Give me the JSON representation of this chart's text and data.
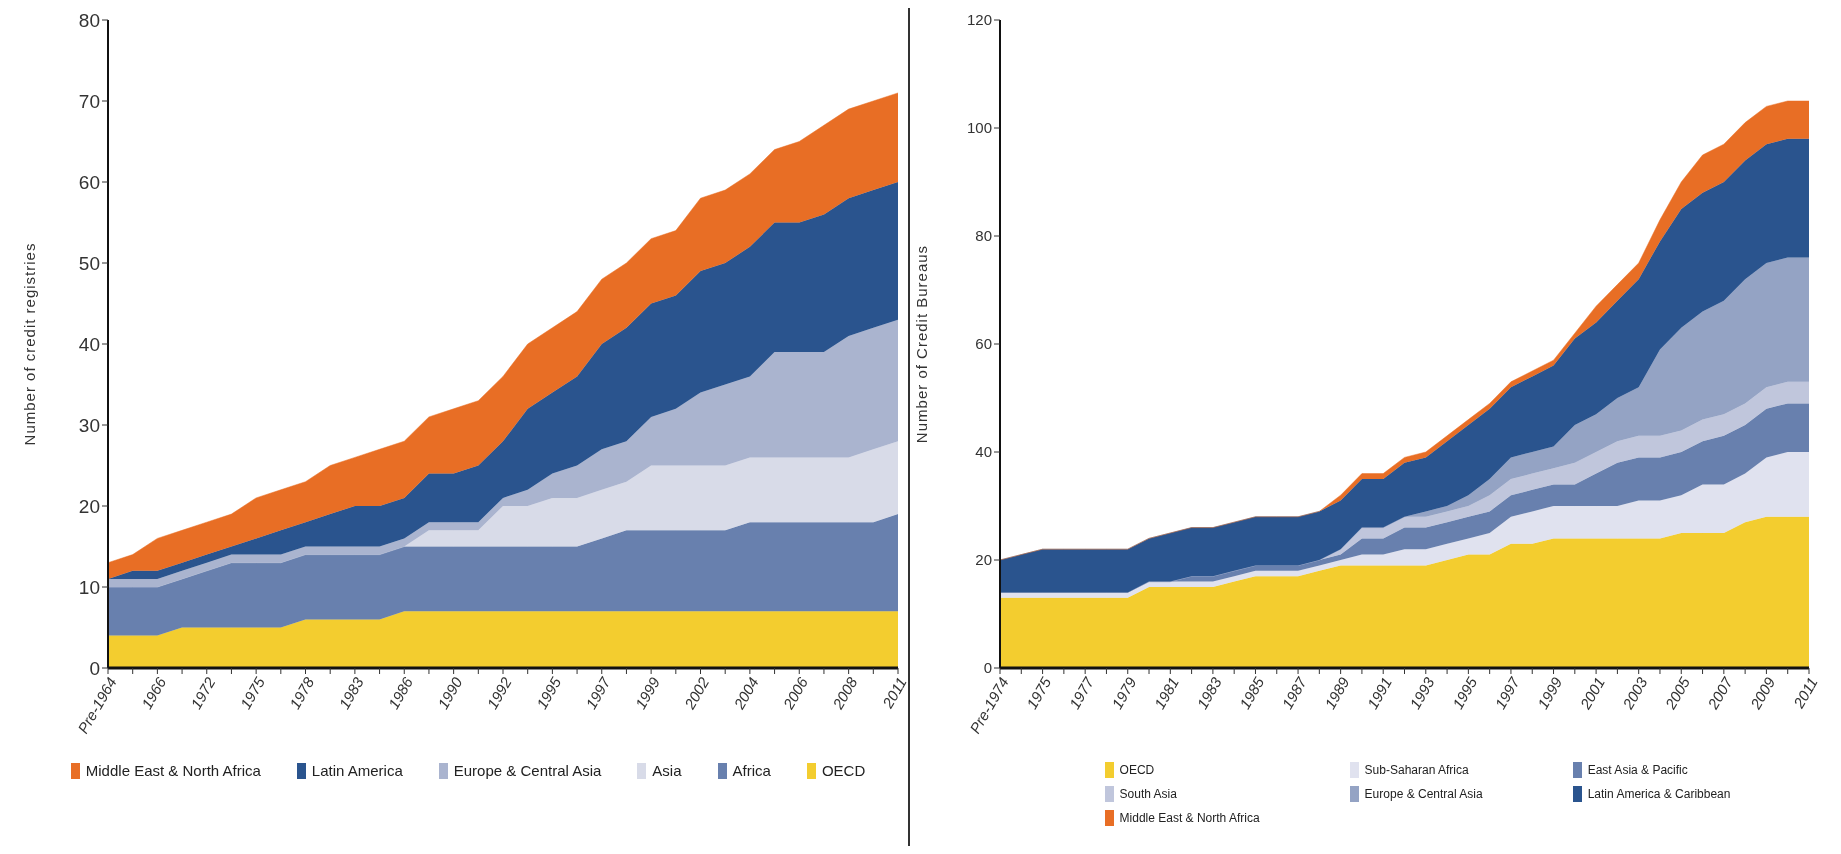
{
  "chart_data": [
    {
      "type": "area",
      "stacked": true,
      "ylabel": "Number of credit registries",
      "legend": "bottom",
      "categories": [
        "Pre-1964",
        null,
        "1966",
        null,
        "1972",
        null,
        "1975",
        null,
        "1978",
        null,
        "1983",
        null,
        "1986",
        null,
        "1990",
        null,
        "1992",
        null,
        "1995",
        null,
        "1997",
        null,
        "1999",
        null,
        "2002",
        null,
        "2004",
        null,
        "2006",
        null,
        "2008",
        null,
        "2011"
      ],
      "ylim": [
        0,
        80
      ],
      "yticks": [
        0,
        10,
        20,
        30,
        40,
        50,
        60,
        70,
        80
      ],
      "series": [
        {
          "name": "OECD",
          "color": "#f3cd2f",
          "values": [
            4,
            4,
            4,
            5,
            5,
            5,
            5,
            5,
            6,
            6,
            6,
            6,
            7,
            7,
            7,
            7,
            7,
            7,
            7,
            7,
            7,
            7,
            7,
            7,
            7,
            7,
            7,
            7,
            7,
            7,
            7,
            7,
            7
          ]
        },
        {
          "name": "Africa",
          "color": "#6880ae",
          "values": [
            6,
            6,
            6,
            6,
            7,
            8,
            8,
            8,
            8,
            8,
            8,
            8,
            8,
            8,
            8,
            8,
            8,
            8,
            8,
            8,
            9,
            10,
            10,
            10,
            10,
            10,
            11,
            11,
            11,
            11,
            11,
            11,
            12
          ]
        },
        {
          "name": "Asia",
          "color": "#d8dbe8",
          "values": [
            0,
            0,
            0,
            0,
            0,
            0,
            0,
            0,
            0,
            0,
            0,
            0,
            0,
            2,
            2,
            2,
            5,
            5,
            6,
            6,
            6,
            6,
            8,
            8,
            8,
            8,
            8,
            8,
            8,
            8,
            8,
            9,
            9
          ]
        },
        {
          "name": "Europe & Central Asia",
          "color": "#aab4cf",
          "values": [
            1,
            1,
            1,
            1,
            1,
            1,
            1,
            1,
            1,
            1,
            1,
            1,
            1,
            1,
            1,
            1,
            1,
            2,
            3,
            4,
            5,
            5,
            6,
            7,
            9,
            10,
            10,
            13,
            13,
            13,
            15,
            15,
            15
          ]
        },
        {
          "name": "Latin America",
          "color": "#2a548e",
          "values": [
            0,
            1,
            1,
            1,
            1,
            1,
            2,
            3,
            3,
            4,
            5,
            5,
            5,
            6,
            6,
            7,
            7,
            10,
            10,
            11,
            13,
            14,
            14,
            14,
            15,
            15,
            16,
            16,
            16,
            17,
            17,
            17,
            17
          ]
        },
        {
          "name": "Middle East & North Africa",
          "color": "#e86e25",
          "values": [
            2,
            2,
            4,
            4,
            4,
            4,
            5,
            5,
            5,
            6,
            6,
            7,
            7,
            7,
            8,
            8,
            8,
            8,
            8,
            8,
            8,
            8,
            8,
            8,
            9,
            9,
            9,
            9,
            10,
            11,
            11,
            11,
            11
          ]
        }
      ]
    },
    {
      "type": "area",
      "stacked": true,
      "ylabel": "Number of Credit Bureaus",
      "legend": "bottom",
      "categories": [
        "Pre-1974",
        null,
        "1975",
        null,
        "1977",
        null,
        "1979",
        null,
        "1981",
        null,
        "1983",
        null,
        "1985",
        null,
        "1987",
        null,
        "1989",
        null,
        "1991",
        null,
        "1993",
        null,
        "1995",
        null,
        "1997",
        null,
        "1999",
        null,
        "2001",
        null,
        "2003",
        null,
        "2005",
        null,
        "2007",
        null,
        "2009",
        null,
        "2011"
      ],
      "ylim": [
        0,
        120
      ],
      "yticks": [
        0,
        20,
        40,
        60,
        80,
        100,
        120
      ],
      "series": [
        {
          "name": "OECD",
          "color": "#f3cd2f",
          "values": [
            13,
            13,
            13,
            13,
            13,
            13,
            13,
            15,
            15,
            15,
            15,
            16,
            17,
            17,
            17,
            18,
            19,
            19,
            19,
            19,
            19,
            20,
            21,
            21,
            23,
            23,
            24,
            24,
            24,
            24,
            24,
            24,
            25,
            25,
            25,
            27,
            28,
            28,
            28
          ]
        },
        {
          "name": "Sub-Saharan Africa",
          "color": "#e0e2ef",
          "values": [
            1,
            1,
            1,
            1,
            1,
            1,
            1,
            1,
            1,
            1,
            1,
            1,
            1,
            1,
            1,
            1,
            1,
            2,
            2,
            3,
            3,
            3,
            3,
            4,
            5,
            6,
            6,
            6,
            6,
            6,
            7,
            7,
            7,
            9,
            9,
            9,
            11,
            12,
            12
          ]
        },
        {
          "name": "East Asia & Pacific",
          "color": "#6880ae",
          "values": [
            0,
            0,
            0,
            0,
            0,
            0,
            0,
            0,
            0,
            1,
            1,
            1,
            1,
            1,
            1,
            1,
            1,
            3,
            3,
            4,
            4,
            4,
            4,
            4,
            4,
            4,
            4,
            4,
            6,
            8,
            8,
            8,
            8,
            8,
            9,
            9,
            9,
            9,
            9
          ]
        },
        {
          "name": "South Asia",
          "color": "#c0c6dc",
          "values": [
            0,
            0,
            0,
            0,
            0,
            0,
            0,
            0,
            0,
            0,
            0,
            0,
            0,
            0,
            0,
            0,
            1,
            2,
            2,
            2,
            2,
            2,
            2,
            3,
            3,
            3,
            3,
            4,
            4,
            4,
            4,
            4,
            4,
            4,
            4,
            4,
            4,
            4,
            4
          ]
        },
        {
          "name": "Europe & Central Asia",
          "color": "#94a3c4",
          "values": [
            0,
            0,
            0,
            0,
            0,
            0,
            0,
            0,
            0,
            0,
            0,
            0,
            0,
            0,
            0,
            0,
            0,
            0,
            0,
            0,
            1,
            1,
            2,
            3,
            4,
            4,
            4,
            7,
            7,
            8,
            9,
            16,
            19,
            20,
            21,
            23,
            23,
            23,
            23
          ]
        },
        {
          "name": "Latin America & Caribbean",
          "color": "#2a548e",
          "values": [
            6,
            7,
            8,
            8,
            8,
            8,
            8,
            8,
            9,
            9,
            9,
            9,
            9,
            9,
            9,
            9,
            9,
            9,
            9,
            10,
            10,
            12,
            13,
            13,
            13,
            14,
            15,
            16,
            17,
            18,
            20,
            20,
            22,
            22,
            22,
            22,
            22,
            22,
            22
          ]
        },
        {
          "name": "Middle East & North Africa",
          "color": "#e86e25",
          "values": [
            0,
            0,
            0,
            0,
            0,
            0,
            0,
            0,
            0,
            0,
            0,
            0,
            0,
            0,
            0,
            0,
            1,
            1,
            1,
            1,
            1,
            1,
            1,
            1,
            1,
            1,
            1,
            1,
            3,
            3,
            3,
            4,
            5,
            7,
            7,
            7,
            7,
            7,
            7
          ]
        }
      ]
    }
  ]
}
